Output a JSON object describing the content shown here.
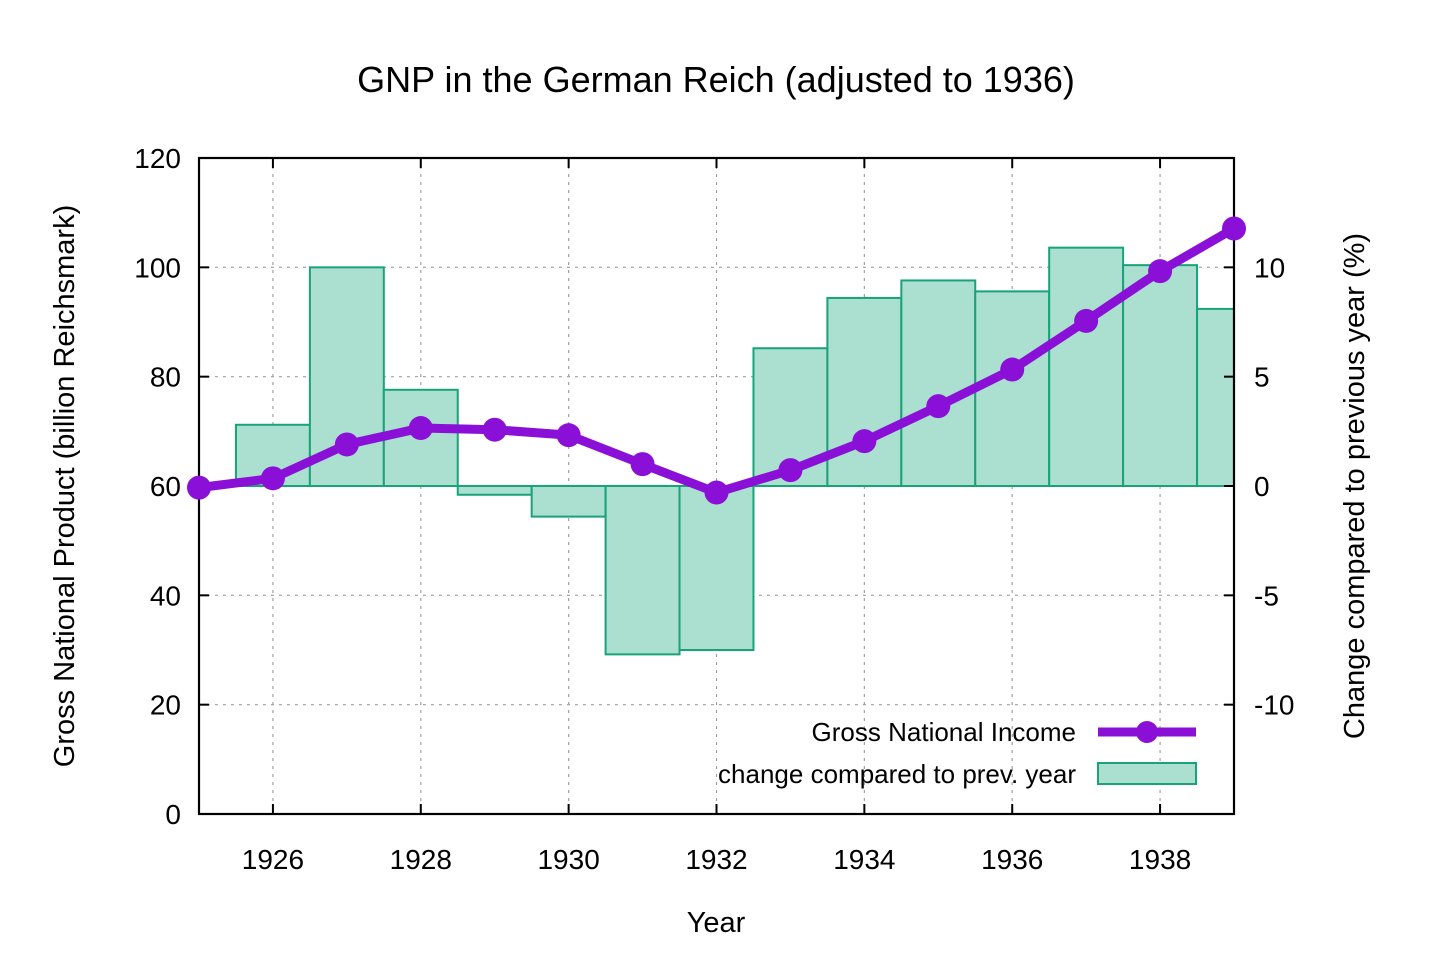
{
  "chart_data": {
    "type": "bar+line",
    "title": "GNP in the German Reich (adjusted to 1936)",
    "xlabel": "Year",
    "ylabel_left": "Gross National Product (billion Reichsmark)",
    "ylabel_right": "Change compared to previous year (%)",
    "xlim": [
      1925,
      1939
    ],
    "ylim_left": [
      0,
      120
    ],
    "ylim_right": [
      -15,
      15
    ],
    "x_ticks": [
      1926,
      1928,
      1930,
      1932,
      1934,
      1936,
      1938
    ],
    "y_ticks_left": [
      0,
      20,
      40,
      60,
      80,
      100,
      120
    ],
    "y_ticks_right": [
      -10,
      -5,
      0,
      5,
      10
    ],
    "grid": true,
    "legend_position": "bottom-right",
    "series": [
      {
        "name": "Gross National Income",
        "kind": "line",
        "axis": "left",
        "color": "#8a10d8",
        "x": [
          1925,
          1926,
          1927,
          1928,
          1929,
          1930,
          1931,
          1932,
          1933,
          1934,
          1935,
          1936,
          1937,
          1938,
          1939
        ],
        "values": [
          59.7,
          61.4,
          67.6,
          70.6,
          70.3,
          69.3,
          64.0,
          58.8,
          62.9,
          68.2,
          74.6,
          81.3,
          90.2,
          99.3,
          107.1
        ]
      },
      {
        "name": "change compared to prev. year",
        "kind": "bar",
        "axis": "right",
        "color": "#abdfcf",
        "x": [
          1926,
          1927,
          1928,
          1929,
          1930,
          1931,
          1932,
          1933,
          1934,
          1935,
          1936,
          1937,
          1938,
          1939
        ],
        "values": [
          2.8,
          10.0,
          4.4,
          -0.4,
          -1.4,
          -7.7,
          -7.5,
          6.3,
          8.6,
          9.4,
          8.9,
          10.9,
          10.1,
          8.1
        ]
      }
    ]
  }
}
